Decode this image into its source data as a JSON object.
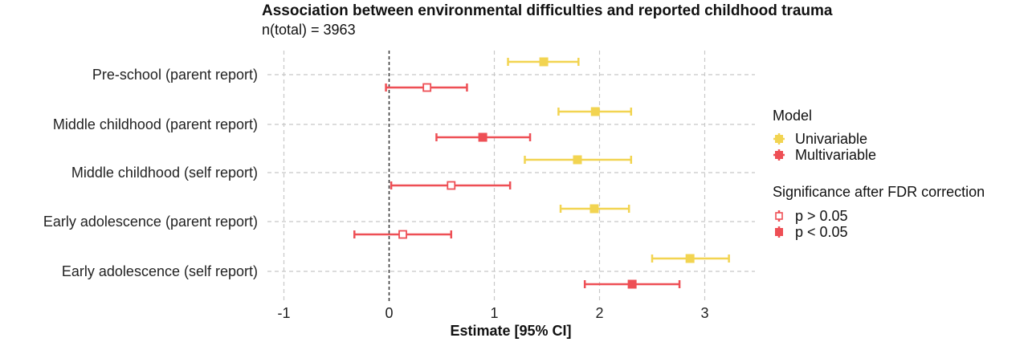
{
  "chart_data": {
    "type": "scatter",
    "subtype": "forest-plot",
    "title": "Association between environmental difficulties and reported childhood trauma",
    "subtitle": "n(total) =  3963",
    "xlabel": "Estimate [95% CI]",
    "ylabel": "",
    "xlim": [
      -1.1,
      3.5
    ],
    "xticks": [
      -1,
      0,
      1,
      2,
      3
    ],
    "xtick_labels": [
      "-1",
      "0",
      "1",
      "2",
      "3"
    ],
    "reference_line": 0,
    "grid": true,
    "categories": [
      "Pre-school (parent report)",
      "Middle childhood (parent report)",
      "Middle childhood (self report)",
      "Early adolescence (parent report)",
      "Early adolescence (self report)"
    ],
    "series": [
      {
        "name": "Univariable",
        "color": "#F2D451",
        "estimates": [
          1.47,
          1.96,
          1.79,
          1.95,
          2.86
        ],
        "ci_low": [
          1.13,
          1.61,
          1.29,
          1.63,
          2.5
        ],
        "ci_high": [
          1.8,
          2.3,
          2.3,
          2.28,
          3.23
        ],
        "significant": [
          true,
          true,
          true,
          true,
          true
        ]
      },
      {
        "name": "Multivariable",
        "color": "#EE4F55",
        "estimates": [
          0.36,
          0.89,
          0.59,
          0.13,
          2.31
        ],
        "ci_low": [
          -0.03,
          0.45,
          0.02,
          -0.33,
          1.86
        ],
        "ci_high": [
          0.74,
          1.34,
          1.15,
          0.59,
          2.76
        ],
        "significant": [
          false,
          true,
          false,
          false,
          true
        ]
      }
    ],
    "legend": {
      "position": "right",
      "model_title": "Model",
      "model_labels": [
        "Univariable",
        "Multivariable"
      ],
      "sig_title": "Significance after FDR correction",
      "sig_labels": [
        "p > 0.05",
        "p < 0.05"
      ]
    }
  }
}
